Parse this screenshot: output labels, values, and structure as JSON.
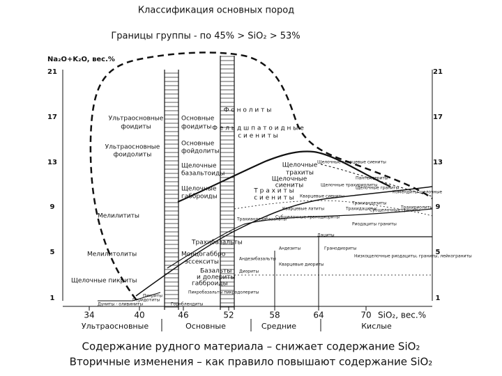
{
  "header": {
    "title": "Классификация основных пород",
    "subtitle": "Границы группы - по 45% > SiO₂ > 53%"
  },
  "axes": {
    "y_label": "Na₂O+K₂O, вес.%",
    "y_ticks": [
      "21",
      "17",
      "13",
      "9",
      "5",
      "1"
    ],
    "x_ticks": [
      "34",
      "40",
      "46",
      "52",
      "58",
      "64",
      "70"
    ],
    "x_label": "SiO₂, вес.%",
    "groups": [
      "Ультраосновные",
      "Основные",
      "Средние",
      "Кислые"
    ]
  },
  "fields": [
    "Ф о н о л и т ы",
    "Ультраосновные",
    "фоидиты",
    "Основные",
    "фоидиты",
    "Ф е л ь д ш п а т о и д н ы е",
    "с и е н и т ы",
    "Ультраосновные",
    "фоидолиты",
    "Основные",
    "фойдолиты",
    "Щелочные",
    "базальтоиды",
    "Щелочные",
    "габброиды",
    "Щелочные",
    "трахиты",
    "Щелочные",
    "сиениты",
    "Т р а х и т ы",
    "с и е н и т ы",
    "Мелилититы",
    "Трахибазальты",
    "Мелилитолиты",
    "Монцогаббро",
    "эссекситы",
    "Базальты",
    "и долериты",
    "габброиды",
    "Щелочные пикриты"
  ],
  "small_fields": [
    "Щелочные кварцевые сиениты",
    "Пантеллериты",
    "Щелочные трахириолиты",
    "Щелочные граниты",
    "Комендиты щелочные",
    "Кварцевые сиениты",
    "Трахиандезиты",
    "Трахидациты",
    "Субщелочные граниты",
    "Трахириолиты",
    "Кварцевые латиты",
    "Субщелочные гранодиориты",
    "Риодациты граниты",
    "Трахиандезибазальты",
    "Дациты",
    "Андезиты",
    "Андезибазальты",
    "Кварцевые диориты",
    "Гранодиориты",
    "Низкощелочные риодациты, граниты, лейкограниты",
    "Диориты",
    "Пикробазальты пикродолериты",
    "Пикриты",
    "Перидотиты",
    "Дуниты - оливиниты",
    "Горнблендиты"
  ],
  "footer": [
    "Содержание рудного материала – снижает содержание SiO₂",
    "Вторичные изменения – как правило повышают содержание SiO₂"
  ]
}
